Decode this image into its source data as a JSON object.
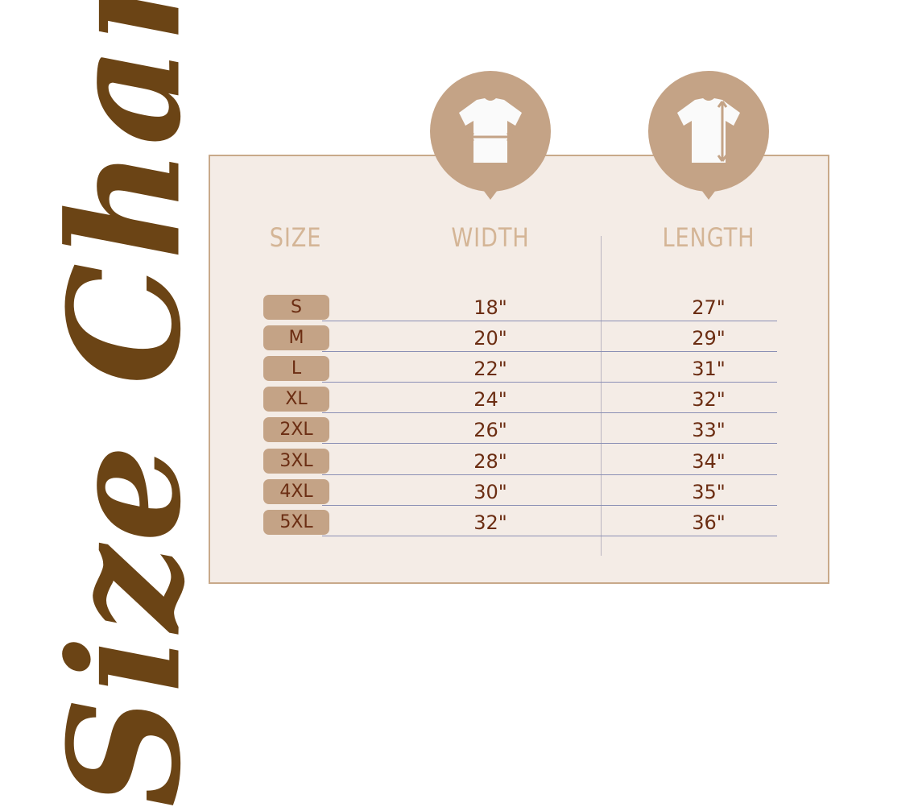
{
  "title": "Size Chart",
  "colors": {
    "accent": "#c4a386",
    "title": "#6b4415",
    "text": "#6b2d12",
    "panel": "#f4ece6",
    "header": "#d4b596"
  },
  "icons": [
    "tshirt-width-icon",
    "tshirt-length-icon"
  ],
  "headers": {
    "size": "SIZE",
    "width": "WIDTH",
    "length": "LENGTH"
  },
  "rows": [
    {
      "size": "S",
      "width": "18\"",
      "length": "27\""
    },
    {
      "size": "M",
      "width": "20\"",
      "length": "29\""
    },
    {
      "size": "L",
      "width": "22\"",
      "length": "31\""
    },
    {
      "size": "XL",
      "width": "24\"",
      "length": "32\""
    },
    {
      "size": "2XL",
      "width": "26\"",
      "length": "33\""
    },
    {
      "size": "3XL",
      "width": "28\"",
      "length": "34\""
    },
    {
      "size": "4XL",
      "width": "30\"",
      "length": "35\""
    },
    {
      "size": "5XL",
      "width": "32\"",
      "length": "36\""
    }
  ]
}
